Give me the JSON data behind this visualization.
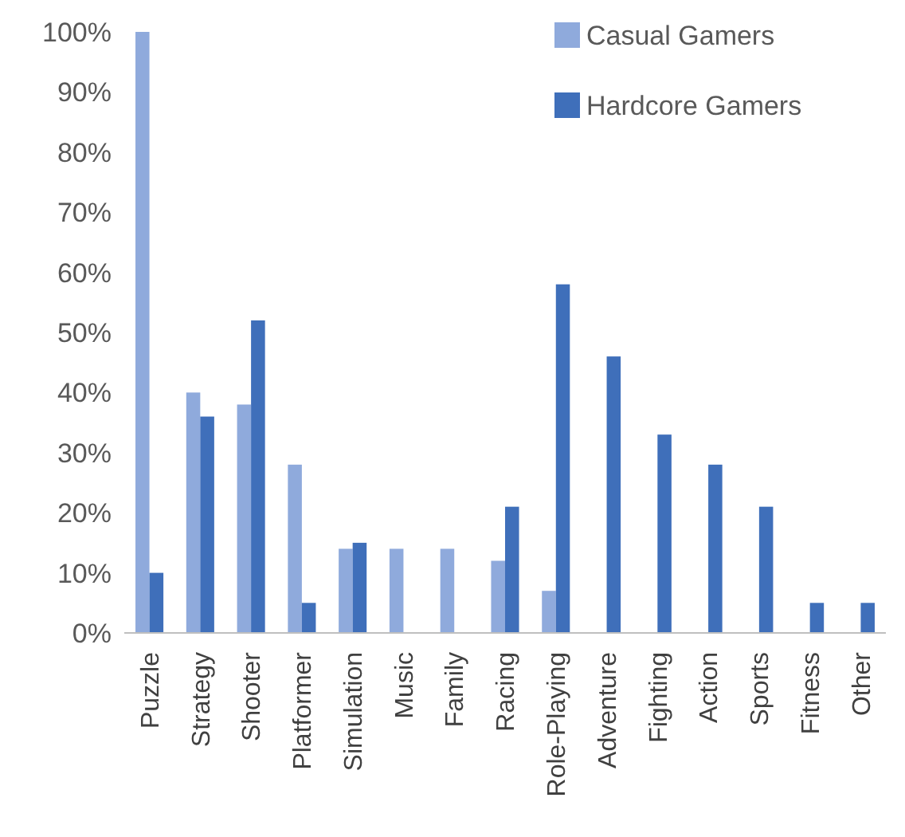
{
  "chart_data": {
    "type": "bar",
    "categories": [
      "Puzzle",
      "Strategy",
      "Shooter",
      "Platformer",
      "Simulation",
      "Music",
      "Family",
      "Racing",
      "Role-Playing",
      "Adventure",
      "Fighting",
      "Action",
      "Sports",
      "Fitness",
      "Other"
    ],
    "series": [
      {
        "name": "Casual Gamers",
        "color": "#8faadc",
        "values": [
          100,
          40,
          38,
          28,
          14,
          14,
          14,
          12,
          7,
          null,
          null,
          null,
          null,
          null,
          null
        ]
      },
      {
        "name": "Hardcore Gamers",
        "color": "#3f6fba",
        "values": [
          10,
          36,
          52,
          5,
          15,
          null,
          null,
          21,
          58,
          46,
          33,
          28,
          21,
          5,
          5
        ]
      }
    ],
    "ylim": [
      0,
      100
    ],
    "yticks": [
      {
        "value": 0,
        "label": "0%"
      },
      {
        "value": 10,
        "label": "10%"
      },
      {
        "value": 20,
        "label": "20%"
      },
      {
        "value": 30,
        "label": "30%"
      },
      {
        "value": 40,
        "label": "40%"
      },
      {
        "value": 50,
        "label": "50%"
      },
      {
        "value": 60,
        "label": "60%"
      },
      {
        "value": 70,
        "label": "70%"
      },
      {
        "value": 80,
        "label": "80%"
      },
      {
        "value": 90,
        "label": "90%"
      },
      {
        "value": 100,
        "label": "100%"
      }
    ],
    "grid": false,
    "legend": "top right"
  }
}
